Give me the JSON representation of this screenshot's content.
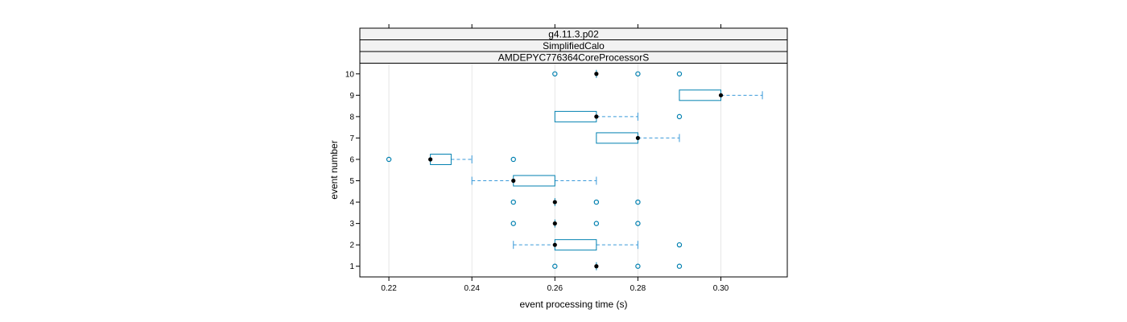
{
  "chart_data": {
    "type": "box",
    "strips": [
      "g4.11.3.p02",
      "SimplifiedCalo",
      "AMDEPYC776364CoreProcessorS"
    ],
    "xlabel": "event processing time (s)",
    "ylabel": "event number",
    "xlim": [
      0.213,
      0.316
    ],
    "x_ticks": [
      "0.22",
      "0.24",
      "0.26",
      "0.28",
      "0.30"
    ],
    "x_tick_values": [
      0.22,
      0.24,
      0.26,
      0.28,
      0.3
    ],
    "y_ticks": [
      "1",
      "2",
      "3",
      "4",
      "5",
      "6",
      "7",
      "8",
      "9",
      "10"
    ],
    "grid": true,
    "colors": {
      "box": "#0080b0",
      "whisker": "#3a9ad9",
      "median": "#000000",
      "grid": "#e6e6e6",
      "strip_bg": "#f2f2f2"
    },
    "boxes": [
      {
        "event": 1,
        "q1": 0.27,
        "median": 0.27,
        "q3": 0.27,
        "whisker_low": 0.27,
        "whisker_high": 0.27,
        "outliers": [
          0.26,
          0.28,
          0.29
        ]
      },
      {
        "event": 2,
        "q1": 0.26,
        "median": 0.26,
        "q3": 0.27,
        "whisker_low": 0.25,
        "whisker_high": 0.28,
        "outliers": [
          0.29
        ]
      },
      {
        "event": 3,
        "q1": 0.26,
        "median": 0.26,
        "q3": 0.26,
        "whisker_low": 0.26,
        "whisker_high": 0.26,
        "outliers": [
          0.25,
          0.27,
          0.28
        ]
      },
      {
        "event": 4,
        "q1": 0.26,
        "median": 0.26,
        "q3": 0.26,
        "whisker_low": 0.26,
        "whisker_high": 0.26,
        "outliers": [
          0.25,
          0.27,
          0.28
        ]
      },
      {
        "event": 5,
        "q1": 0.25,
        "median": 0.25,
        "q3": 0.26,
        "whisker_low": 0.24,
        "whisker_high": 0.27,
        "outliers": []
      },
      {
        "event": 6,
        "q1": 0.23,
        "median": 0.23,
        "q3": 0.235,
        "whisker_low": 0.23,
        "whisker_high": 0.24,
        "outliers": [
          0.22,
          0.25
        ]
      },
      {
        "event": 7,
        "q1": 0.27,
        "median": 0.28,
        "q3": 0.28,
        "whisker_low": 0.27,
        "whisker_high": 0.29,
        "outliers": []
      },
      {
        "event": 8,
        "q1": 0.26,
        "median": 0.27,
        "q3": 0.27,
        "whisker_low": 0.26,
        "whisker_high": 0.28,
        "outliers": [
          0.29
        ]
      },
      {
        "event": 9,
        "q1": 0.29,
        "median": 0.3,
        "q3": 0.3,
        "whisker_low": 0.29,
        "whisker_high": 0.31,
        "outliers": []
      },
      {
        "event": 10,
        "q1": 0.27,
        "median": 0.27,
        "q3": 0.27,
        "whisker_low": 0.27,
        "whisker_high": 0.27,
        "outliers": [
          0.26,
          0.28,
          0.29
        ]
      }
    ]
  }
}
